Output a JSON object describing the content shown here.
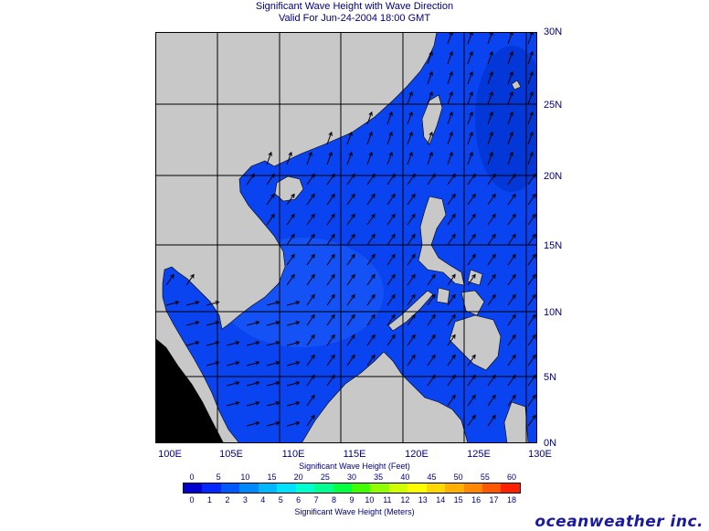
{
  "title": {
    "line1": "Significant Wave Height with Wave Direction",
    "line2": "Valid For Jun-24-2004 18:00 GMT"
  },
  "map": {
    "lat_labels": [
      "30N",
      "25N",
      "20N",
      "15N",
      "10N",
      "5N",
      "0N"
    ],
    "lon_labels": [
      "100E",
      "105E",
      "110E",
      "115E",
      "120E",
      "125E",
      "130E"
    ],
    "land_color": "#c8c8c8",
    "sea_color": "#0a43f0",
    "wave_direction": "toward north-northeast"
  },
  "colorbar": {
    "feet_title": "Significant Wave Height (Feet)",
    "meters_title": "Significant Wave Height (Meters)",
    "feet_ticks": [
      "0",
      "5",
      "10",
      "15",
      "20",
      "25",
      "30",
      "35",
      "40",
      "45",
      "50",
      "55",
      "60"
    ],
    "meter_ticks": [
      "0",
      "1",
      "2",
      "3",
      "4",
      "5",
      "6",
      "7",
      "8",
      "9",
      "10",
      "11",
      "12",
      "13",
      "14",
      "15",
      "16",
      "17",
      "18"
    ],
    "colors": [
      "#0000d0",
      "#0028ff",
      "#0058ff",
      "#0088ff",
      "#00b8ff",
      "#00e0ff",
      "#00ffd0",
      "#00ff90",
      "#00ff40",
      "#40ff00",
      "#90ff00",
      "#d0ff00",
      "#ffff00",
      "#ffd800",
      "#ffb000",
      "#ff8800",
      "#ff5800",
      "#ff2000"
    ]
  },
  "brand": "oceanweather inc."
}
